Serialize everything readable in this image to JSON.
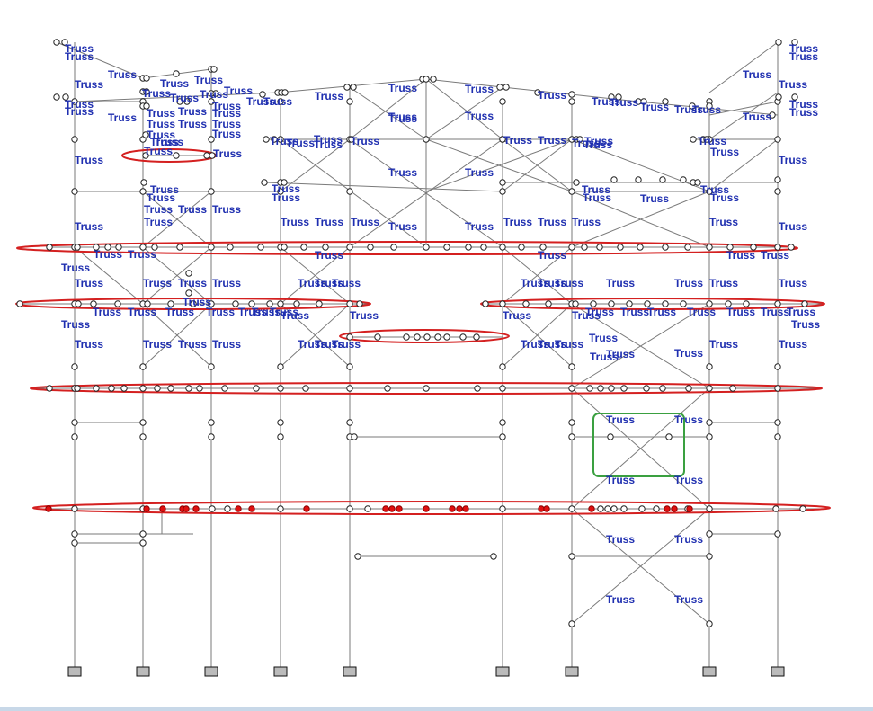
{
  "diagram": {
    "member_label": "Truss",
    "colors": {
      "frame_line": "#7a7a7a",
      "label": "#1f2fb0",
      "node_fill": "#ffffff",
      "node_stroke": "#222222",
      "highlight_node": "#e01010",
      "highlight_ellipse": "#d42020",
      "selection_box": "#3aa040",
      "support_fill": "#bbbbbb"
    }
  }
}
